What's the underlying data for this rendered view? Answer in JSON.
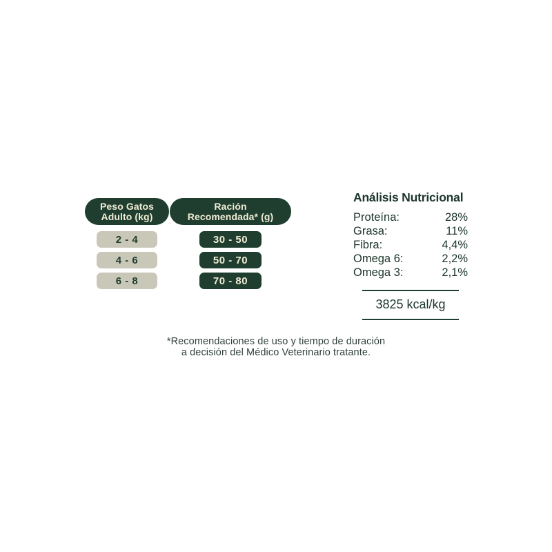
{
  "appearance": {
    "background": "#ffffff",
    "dark_green": "#1f3e2f",
    "cream": "#f1ecd6",
    "gray_pill": "#c9c8b8",
    "footnote_color": "#31413a"
  },
  "feeding": {
    "weight_col": {
      "header": "Peso Gatos\nAdulto (kg)",
      "rows": [
        "2 - 4",
        "4 - 6",
        "6 - 8"
      ]
    },
    "ration_col": {
      "header": "Ración\nRecomendada* (g)",
      "rows": [
        "30 - 50",
        "50 - 70",
        "70 - 80"
      ]
    }
  },
  "analysis": {
    "title": "Análisis Nutricional",
    "rows": [
      {
        "label": "Proteína:",
        "value": "28%"
      },
      {
        "label": "Grasa:",
        "value": "11%"
      },
      {
        "label": "Fibra:",
        "value": "4,4%"
      },
      {
        "label": "Omega 6:",
        "value": "2,2%"
      },
      {
        "label": "Omega 3:",
        "value": "2,1%"
      }
    ],
    "energy": "3825 kcal/kg"
  },
  "footnote": {
    "line1": "*Recomendaciones de uso y tiempo de duración",
    "line2": "a decisión del Médico Veterinario tratante."
  }
}
